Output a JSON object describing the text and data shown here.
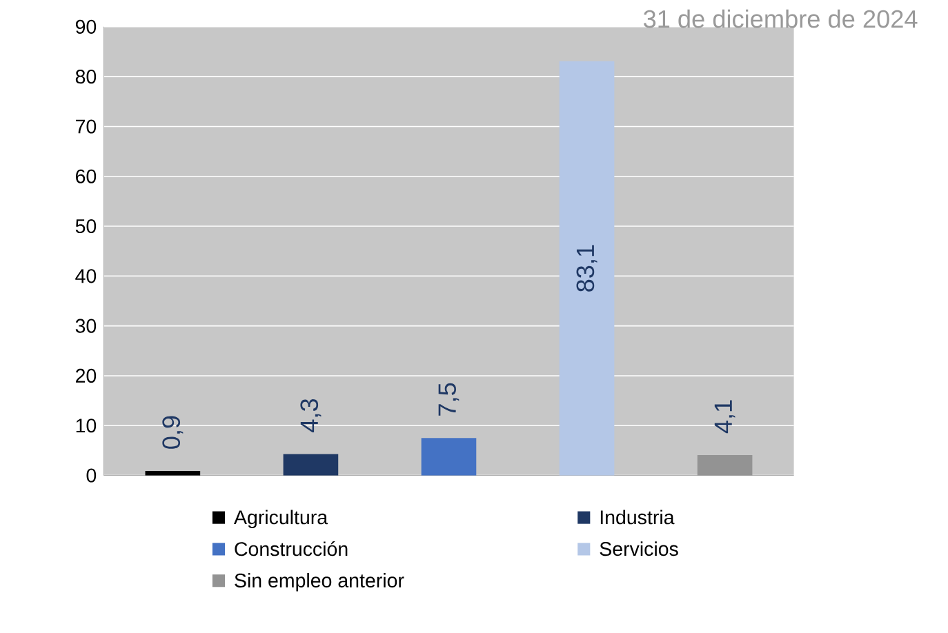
{
  "chart_data": {
    "type": "bar",
    "title": "31 de diciembre de 2024",
    "categories": [
      null,
      null,
      null,
      null,
      null
    ],
    "series": [
      {
        "name": "Agricultura",
        "color": "#000000",
        "values": [
          0.9,
          null,
          null,
          null,
          null
        ],
        "value_labels": [
          "0,9",
          null,
          null,
          null,
          null
        ]
      },
      {
        "name": "Industria",
        "color": "#1f3864",
        "values": [
          null,
          4.3,
          null,
          null,
          null
        ],
        "value_labels": [
          null,
          "4,3",
          null,
          null,
          null
        ]
      },
      {
        "name": "Construcción",
        "color": "#4472c4",
        "values": [
          null,
          null,
          7.5,
          null,
          null
        ],
        "value_labels": [
          null,
          null,
          "7,5",
          null,
          null
        ]
      },
      {
        "name": "Servicios",
        "color": "#b4c7e7",
        "values": [
          null,
          null,
          null,
          83.1,
          null
        ],
        "value_labels": [
          null,
          null,
          null,
          "83,1",
          null
        ]
      },
      {
        "name": "Sin empleo anterior",
        "color": "#939393",
        "values": [
          null,
          null,
          null,
          null,
          4.1
        ],
        "value_labels": [
          null,
          null,
          null,
          null,
          "4,1"
        ]
      }
    ],
    "ylim": [
      0,
      90
    ],
    "yticks": [
      0,
      10,
      20,
      30,
      40,
      50,
      60,
      70,
      80,
      90
    ],
    "grid": "y",
    "legend": "bottom"
  }
}
